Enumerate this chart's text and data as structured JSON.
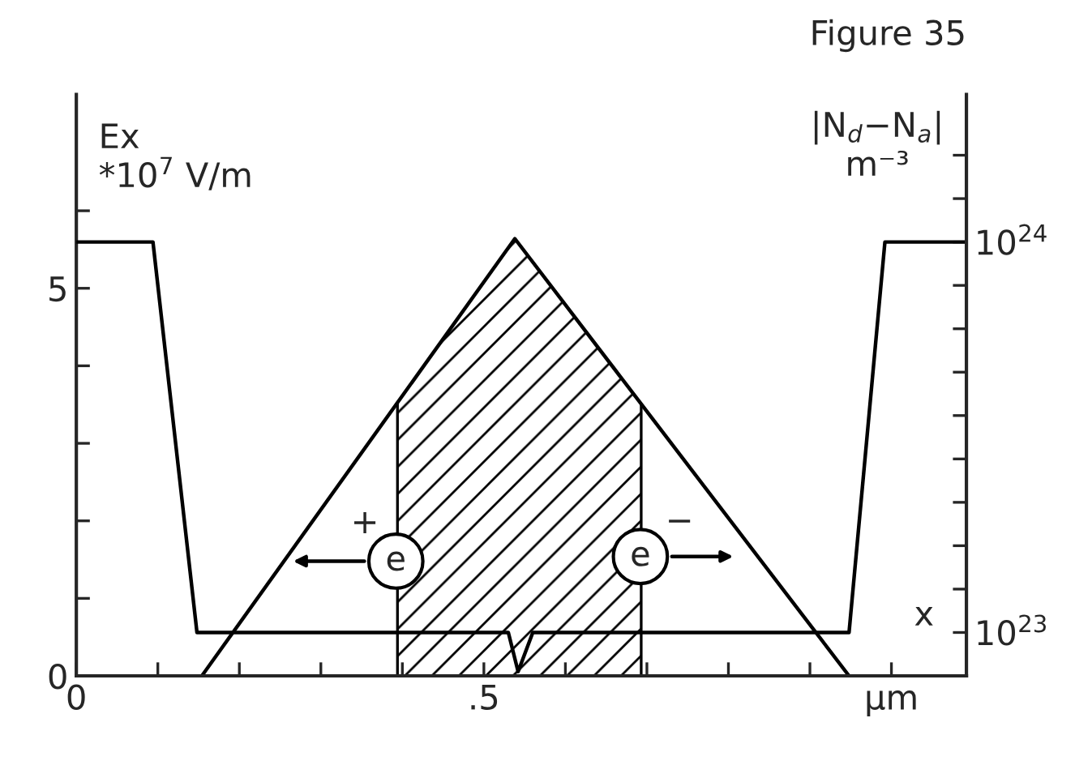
{
  "chart_data": {
    "type": "line",
    "title": "Figure 35",
    "ylabel": "Ex\n*10$^{7}$ V/m",
    "y2label": "|N$_{d}$−N$_{a}$|\nm⁻³",
    "xlim": [
      0,
      1.092
    ],
    "ylim": [
      0,
      7.5
    ],
    "y2lim": [
      0,
      1.34e+24
    ],
    "xticks": [
      {
        "value": 0,
        "label": "0"
      },
      {
        "value": 0.1,
        "label": null
      },
      {
        "value": 0.2,
        "label": null
      },
      {
        "value": 0.3,
        "label": null
      },
      {
        "value": 0.4,
        "label": null
      },
      {
        "value": 0.5,
        "label": ".5"
      },
      {
        "value": 0.6,
        "label": null
      },
      {
        "value": 0.7,
        "label": null
      },
      {
        "value": 0.8,
        "label": null
      },
      {
        "value": 0.9,
        "label": null
      },
      {
        "value": 1.0,
        "label": "μm"
      }
    ],
    "yticks": [
      0,
      {
        "value": 1,
        "label": null
      },
      {
        "value": 2,
        "label": null
      },
      {
        "value": 3,
        "label": null
      },
      {
        "value": 4,
        "label": null
      },
      5,
      {
        "value": 6,
        "label": null
      }
    ],
    "y2ticks": [
      {
        "value": 1e+23,
        "label": "10$^{23}$"
      },
      {
        "value": 2e+23,
        "label": null
      },
      {
        "value": 3e+23,
        "label": null
      },
      {
        "value": 4e+23,
        "label": null
      },
      {
        "value": 5e+23,
        "label": null
      },
      {
        "value": 6e+23,
        "label": null
      },
      {
        "value": 7e+23,
        "label": null
      },
      {
        "value": 8e+23,
        "label": null
      },
      {
        "value": 9e+23,
        "label": null
      },
      {
        "value": 1e+24,
        "label": "10$^{24}$"
      },
      {
        "value": 1.1e+24,
        "label": null
      },
      {
        "value": 1.2e+24,
        "label": null
      }
    ],
    "series": [
      {
        "color": "#000000",
        "x": [
          0.154,
          0.538,
          0.948
        ],
        "values": [
          0,
          5.64,
          0
        ]
      },
      {
        "color": "#000000",
        "axis": "y2",
        "x": [
          0,
          0.094,
          0.148,
          0.53,
          0.542,
          0.56,
          0.948,
          0.992,
          1.092
        ],
        "values": [
          1e+24,
          1e+24,
          1e+23,
          1e+23,
          1e+22,
          1e+23,
          1e+23,
          1e+24,
          1e+24
        ]
      }
    ],
    "bands": [
      {
        "axis": "x",
        "from": 0.394,
        "to": 0.693,
        "color": "#000000"
      }
    ],
    "annotations": [
      "+",
      "−",
      "e",
      "e",
      "x"
    ]
  }
}
